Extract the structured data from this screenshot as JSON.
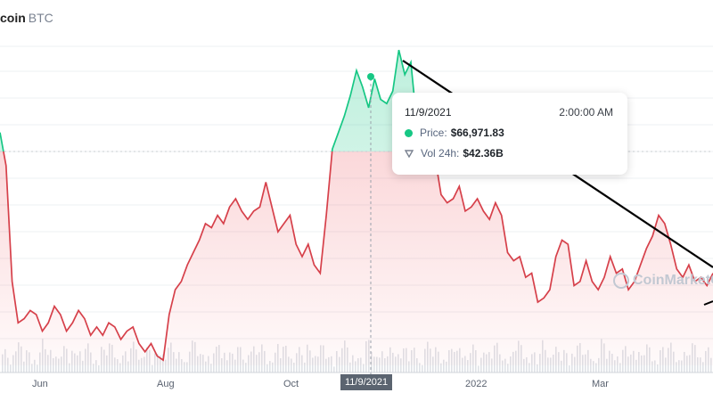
{
  "header": {
    "coin": "coin",
    "symbol": "BTC"
  },
  "tooltip": {
    "date": "11/9/2021",
    "time": "2:00:00 AM",
    "price_label": "Price:",
    "price_value": "$66,971.83",
    "volume_label": "Vol 24h:",
    "volume_value": "$42.36B"
  },
  "watermark": {
    "text": "CoinMarketCap"
  },
  "colors": {
    "up": "#16c784",
    "down": "#d6404a",
    "trendline": "#000000",
    "crosshair_label_bg": "#5b6470"
  },
  "chart_data": {
    "type": "line",
    "reference_date": "11/9/2021",
    "xlabels": [
      "Jun",
      "Aug",
      "Oct",
      "11/9/2021",
      "2022",
      "Mar"
    ],
    "highlighted_xlabel": "11/9/2021",
    "series": [
      {
        "values": [
          57000,
          53000,
          39000,
          34000,
          34500,
          35500,
          35000,
          33000,
          34000,
          36000,
          35000,
          33000,
          34000,
          35500,
          34500,
          32500,
          33500,
          32500,
          34000,
          33500,
          32000,
          33000,
          33500,
          31500,
          30500,
          31500,
          30000,
          29500,
          35000,
          38000,
          39000,
          41000,
          42500,
          44000,
          46000,
          45500,
          47000,
          46000,
          48000,
          49000,
          47500,
          46500,
          47500,
          48000,
          51000,
          48000,
          45000,
          46000,
          47000,
          43500,
          42000,
          43500,
          41000,
          40000,
          47000,
          55000,
          57000,
          59000,
          61500,
          64500,
          62500,
          60000,
          63500,
          61000,
          60500,
          62000,
          66971.83,
          64000,
          65500,
          58000,
          57000,
          53500,
          54000,
          49500,
          48500,
          49000,
          50500,
          47500,
          48000,
          49000,
          47500,
          46500,
          48500,
          47000,
          42500,
          41500,
          42000,
          39500,
          40000,
          36500,
          37000,
          38000,
          42000,
          44000,
          43500,
          38500,
          39000,
          41500,
          39000,
          38000,
          39500,
          42000,
          40000,
          40500,
          38000,
          39000,
          41000,
          43000,
          44500,
          47000,
          46000,
          43500,
          40500,
          39500,
          41000,
          39000,
          39500,
          38500,
          40000
        ]
      }
    ]
  }
}
